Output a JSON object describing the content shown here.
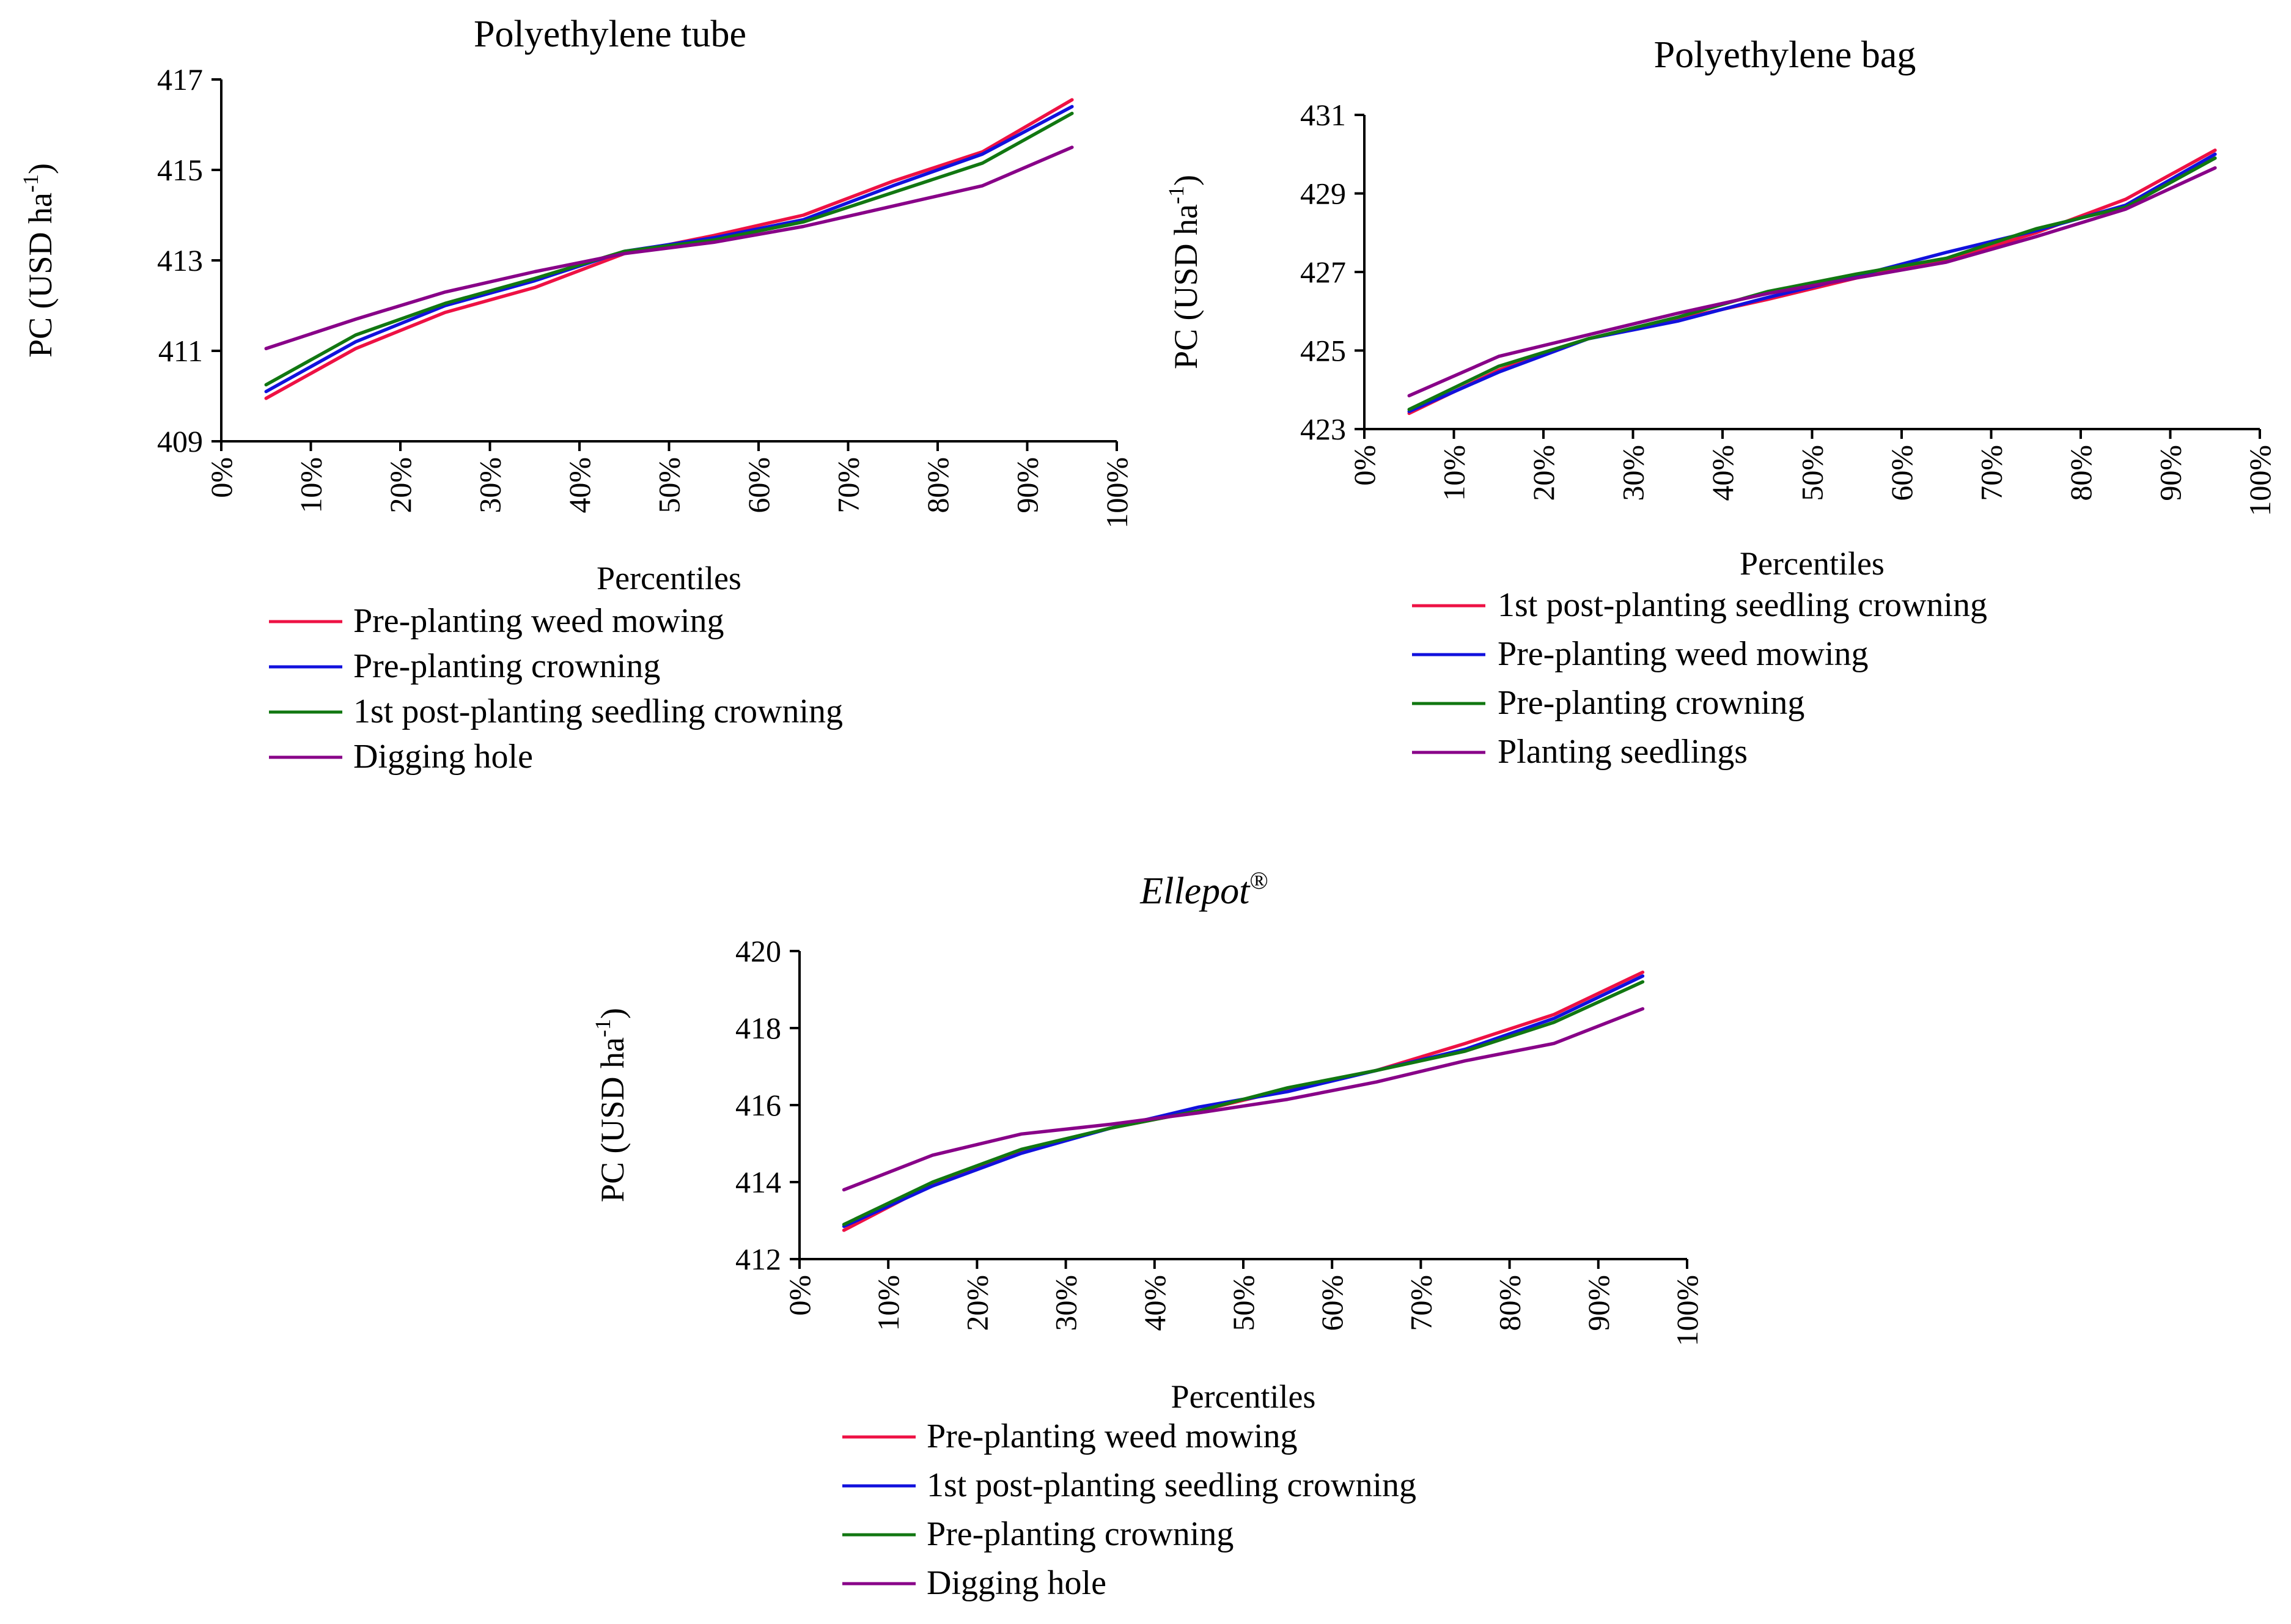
{
  "colors": {
    "red": "#ee1144",
    "blue": "#1111dd",
    "green": "#117711",
    "purple": "#880088"
  },
  "chart_data": [
    {
      "type": "line",
      "title": "Polyethylene tube",
      "title_italic": false,
      "title_sup": "",
      "xlabel": "Percentiles",
      "ylabel": "PC (USD ha",
      "ylabel_sup": "-1",
      "ylabel_end": ")",
      "xticks": [
        "0%",
        "10%",
        "20%",
        "30%",
        "40%",
        "50%",
        "60%",
        "70%",
        "80%",
        "90%",
        "100%"
      ],
      "yticks": [
        "409",
        "411",
        "413",
        "415",
        "417"
      ],
      "xlim": [
        0,
        100
      ],
      "ylim": [
        409,
        417
      ],
      "x": [
        5,
        15,
        25,
        35,
        45,
        55,
        65,
        75,
        85,
        95
      ],
      "series": [
        {
          "name": "Pre-planting weed mowing",
          "color": "red",
          "values": [
            409.95,
            411.05,
            411.85,
            412.4,
            413.15,
            413.55,
            414.0,
            414.75,
            415.4,
            416.55
          ]
        },
        {
          "name": "Pre-planting crowning",
          "color": "blue",
          "values": [
            410.1,
            411.2,
            412.0,
            412.55,
            413.2,
            413.5,
            413.9,
            414.65,
            415.35,
            416.4
          ]
        },
        {
          "name": "1st post-planting seedling crowning",
          "color": "green",
          "values": [
            410.25,
            411.35,
            412.05,
            412.6,
            413.2,
            413.45,
            413.85,
            414.5,
            415.15,
            416.25
          ]
        },
        {
          "name": "Digging  hole",
          "color": "purple",
          "values": [
            411.05,
            411.7,
            412.3,
            412.75,
            413.15,
            413.4,
            413.75,
            414.2,
            414.65,
            415.5
          ]
        }
      ]
    },
    {
      "type": "line",
      "title": "Polyethylene bag",
      "title_italic": false,
      "title_sup": "",
      "xlabel": "Percentiles",
      "ylabel": "PC (USD ha",
      "ylabel_sup": "-1",
      "ylabel_end": ")",
      "xticks": [
        "0%",
        "10%",
        "20%",
        "30%",
        "40%",
        "50%",
        "60%",
        "70%",
        "80%",
        "90%",
        "100%"
      ],
      "yticks": [
        "423",
        "425",
        "427",
        "429",
        "431"
      ],
      "xlim": [
        0,
        100
      ],
      "ylim": [
        423,
        431
      ],
      "x": [
        5,
        15,
        25,
        35,
        45,
        55,
        65,
        75,
        85,
        95
      ],
      "series": [
        {
          "name": "1st post-planting seedling crowning",
          "color": "red",
          "values": [
            423.4,
            424.5,
            425.3,
            425.8,
            426.3,
            426.85,
            427.3,
            428.0,
            428.85,
            430.1
          ]
        },
        {
          "name": "Pre-planting weed mowing",
          "color": "blue",
          "values": [
            423.45,
            424.45,
            425.3,
            425.75,
            426.35,
            426.9,
            427.5,
            428.05,
            428.7,
            430.0
          ]
        },
        {
          "name": "Pre-planting crowning",
          "color": "green",
          "values": [
            423.5,
            424.6,
            425.3,
            425.85,
            426.5,
            426.95,
            427.35,
            428.1,
            428.65,
            429.9
          ]
        },
        {
          "name": "Planting seedlings",
          "color": "purple",
          "values": [
            423.85,
            424.85,
            425.4,
            425.95,
            426.45,
            426.85,
            427.25,
            427.9,
            428.6,
            429.65
          ]
        }
      ]
    },
    {
      "type": "line",
      "title": "Ellepot",
      "title_italic": true,
      "title_sup": "®",
      "xlabel": "Percentiles",
      "ylabel": "PC  (USD ha",
      "ylabel_sup": "-1",
      "ylabel_end": ")",
      "xticks": [
        "0%",
        "10%",
        "20%",
        "30%",
        "40%",
        "50%",
        "60%",
        "70%",
        "80%",
        "90%",
        "100%"
      ],
      "yticks": [
        "412",
        "414",
        "416",
        "418",
        "420"
      ],
      "xlim": [
        0,
        100
      ],
      "ylim": [
        412,
        420
      ],
      "x": [
        5,
        15,
        25,
        35,
        45,
        55,
        65,
        75,
        85,
        95
      ],
      "series": [
        {
          "name": "Pre-planting weed mowing",
          "color": "red",
          "values": [
            412.75,
            413.95,
            414.8,
            415.4,
            415.85,
            416.4,
            416.9,
            417.6,
            418.35,
            419.45
          ]
        },
        {
          "name": "1st post-planting seedling crowning",
          "color": "blue",
          "values": [
            412.85,
            413.9,
            414.75,
            415.4,
            415.95,
            416.35,
            416.9,
            417.45,
            418.25,
            419.35
          ]
        },
        {
          "name": "Pre-planting crowning",
          "color": "green",
          "values": [
            412.9,
            414.0,
            414.85,
            415.4,
            415.85,
            416.45,
            416.9,
            417.4,
            418.15,
            419.2
          ]
        },
        {
          "name": "Digging  hole",
          "color": "purple",
          "values": [
            413.8,
            414.7,
            415.25,
            415.5,
            415.8,
            416.15,
            416.6,
            417.15,
            417.6,
            418.5
          ]
        }
      ]
    }
  ]
}
